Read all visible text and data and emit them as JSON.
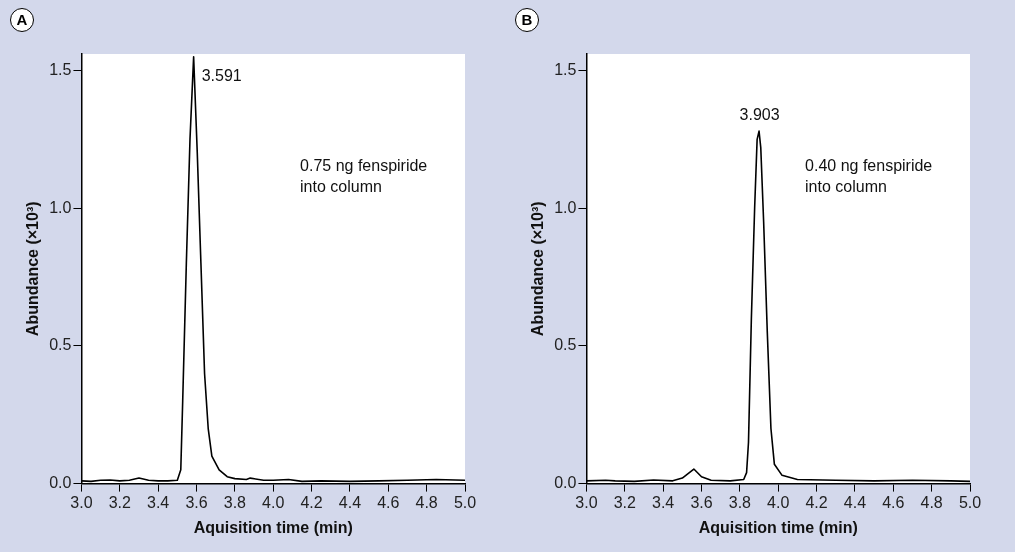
{
  "chart_data": [
    {
      "type": "line",
      "title": "A",
      "xlabel": "Aquisition time (min)",
      "ylabel": "Abundance (×10³)",
      "xlim": [
        3.0,
        5.0
      ],
      "xticks": [
        {
          "value": 3.0,
          "label": "3.0"
        },
        {
          "value": 3.2,
          "label": "3.2"
        },
        {
          "value": 3.4,
          "label": "3.4"
        },
        {
          "value": 3.6,
          "label": "3.6"
        },
        {
          "value": 3.8,
          "label": "3.8"
        },
        {
          "value": 4.0,
          "label": "4.0"
        },
        {
          "value": 4.2,
          "label": "4.2"
        },
        {
          "value": 4.4,
          "label": "4.4"
        },
        {
          "value": 4.6,
          "label": "4.6"
        },
        {
          "value": 4.8,
          "label": "4.8"
        },
        {
          "value": 5.0,
          "label": "5.0"
        }
      ],
      "ylim": [
        0,
        1.56
      ],
      "yticks": [
        {
          "value": 0,
          "label": "0.0"
        },
        {
          "value": 0.5,
          "label": "0.5"
        },
        {
          "value": 1.0,
          "label": "1.0"
        },
        {
          "value": 1.5,
          "label": "1.5"
        }
      ],
      "grid": false,
      "legend": false,
      "marker": "none",
      "line_style": "solid",
      "series": [
        {
          "color": "#000000",
          "x": [
            3.0,
            3.05,
            3.1,
            3.15,
            3.2,
            3.25,
            3.3,
            3.35,
            3.4,
            3.45,
            3.5,
            3.518,
            3.528,
            3.547,
            3.566,
            3.585,
            3.604,
            3.623,
            3.642,
            3.661,
            3.68,
            3.718,
            3.76,
            3.8,
            3.86,
            3.88,
            3.95,
            4.0,
            4.08,
            4.15,
            4.25,
            4.4,
            4.55,
            4.7,
            4.85,
            5.0
          ],
          "values": [
            0.01,
            0.008,
            0.012,
            0.013,
            0.01,
            0.012,
            0.02,
            0.012,
            0.01,
            0.01,
            0.012,
            0.05,
            0.3,
            0.8,
            1.25,
            1.55,
            1.2,
            0.8,
            0.4,
            0.2,
            0.1,
            0.05,
            0.025,
            0.018,
            0.015,
            0.02,
            0.012,
            0.012,
            0.015,
            0.008,
            0.01,
            0.008,
            0.01,
            0.012,
            0.015,
            0.012
          ]
        }
      ],
      "annotations": [
        {
          "text": "3.591",
          "x": 3.585,
          "y": 1.5
        },
        "0.75 ng fenspiride\ninto column"
      ]
    },
    {
      "type": "line",
      "title": "B",
      "xlabel": "Aquisition time (min)",
      "ylabel": "Abundance (×10³)",
      "xlim": [
        3.0,
        5.0
      ],
      "xticks": [
        {
          "value": 3.0,
          "label": "3.0"
        },
        {
          "value": 3.2,
          "label": "3.2"
        },
        {
          "value": 3.4,
          "label": "3.4"
        },
        {
          "value": 3.6,
          "label": "3.6"
        },
        {
          "value": 3.8,
          "label": "3.8"
        },
        {
          "value": 4.0,
          "label": "4.0"
        },
        {
          "value": 4.2,
          "label": "4.2"
        },
        {
          "value": 4.4,
          "label": "4.4"
        },
        {
          "value": 4.6,
          "label": "4.6"
        },
        {
          "value": 4.8,
          "label": "4.8"
        },
        {
          "value": 5.0,
          "label": "5.0"
        }
      ],
      "ylim": [
        0,
        1.56
      ],
      "yticks": [
        {
          "value": 0,
          "label": "0.0"
        },
        {
          "value": 0.5,
          "label": "0.5"
        },
        {
          "value": 1.0,
          "label": "1.0"
        },
        {
          "value": 1.5,
          "label": "1.5"
        }
      ],
      "grid": false,
      "legend": false,
      "marker": "none",
      "line_style": "solid",
      "series": [
        {
          "color": "#000000",
          "x": [
            3.0,
            3.1,
            3.15,
            3.25,
            3.35,
            3.45,
            3.5,
            3.56,
            3.6,
            3.65,
            3.75,
            3.82,
            3.835,
            3.845,
            3.86,
            3.877,
            3.89,
            3.9,
            3.909,
            3.924,
            3.943,
            3.962,
            3.98,
            4.02,
            4.1,
            4.3,
            4.5,
            4.7,
            4.9,
            5.0
          ],
          "values": [
            0.01,
            0.012,
            0.01,
            0.008,
            0.013,
            0.01,
            0.02,
            0.053,
            0.025,
            0.012,
            0.01,
            0.015,
            0.04,
            0.15,
            0.6,
            1.0,
            1.25,
            1.28,
            1.22,
            0.95,
            0.55,
            0.2,
            0.07,
            0.03,
            0.015,
            0.012,
            0.01,
            0.012,
            0.01,
            0.008
          ]
        }
      ],
      "annotations": [
        {
          "text": "3.903",
          "x": 3.903,
          "y": 1.28
        },
        "0.40 ng fenspiride\ninto column"
      ]
    }
  ]
}
